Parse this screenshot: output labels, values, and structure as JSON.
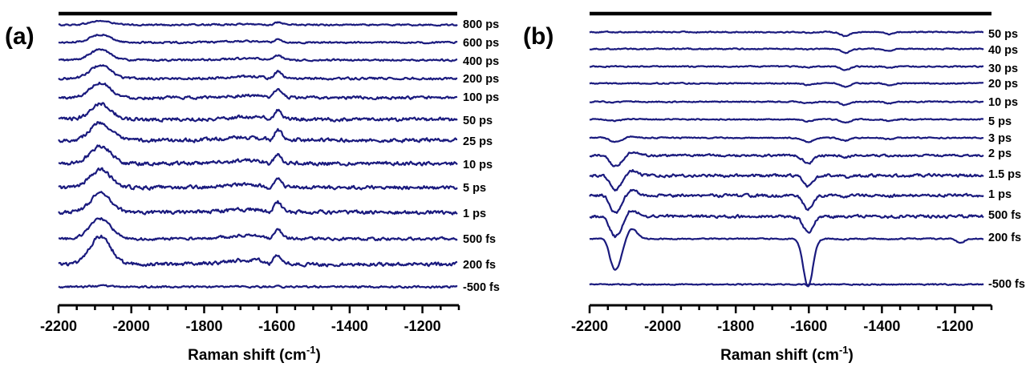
{
  "colors": {
    "trace": "#1a1a7e",
    "axis": "#000000",
    "background": "#ffffff"
  },
  "chart_data": [
    {
      "type": "line",
      "panel_label": "(a)",
      "xlabel": "Raman shift (cm",
      "xlabel_sup": "-1",
      "xlabel_close": ")",
      "ylabel": "",
      "xlim": [
        -2200,
        -1100
      ],
      "xticks": [
        -2200,
        -2000,
        -1800,
        -1600,
        -1400,
        -1200
      ],
      "tick_labels": [
        "-2200",
        "-2000",
        "-1800",
        "-1600",
        "-1400",
        "-1200"
      ],
      "features": [
        {
          "center": -2085,
          "width": 28,
          "kind": "positive"
        },
        {
          "center": -1600,
          "width": 12,
          "kind": "positive"
        }
      ],
      "series": [
        {
          "name": "800 ps",
          "peak_2085": 0.22,
          "peak_1600": 0.12,
          "noise": 0.08
        },
        {
          "name": "600 ps",
          "peak_2085": 0.45,
          "peak_1600": 0.15,
          "noise": 0.09
        },
        {
          "name": "400 ps",
          "peak_2085": 0.6,
          "peak_1600": 0.22,
          "noise": 0.1
        },
        {
          "name": "200 ps",
          "peak_2085": 0.75,
          "peak_1600": 0.35,
          "noise": 0.12
        },
        {
          "name": "100 ps",
          "peak_2085": 0.85,
          "peak_1600": 0.45,
          "noise": 0.15
        },
        {
          "name": "50 ps",
          "peak_2085": 0.9,
          "peak_1600": 0.45,
          "noise": 0.2
        },
        {
          "name": "25 ps",
          "peak_2085": 1.0,
          "peak_1600": 0.5,
          "noise": 0.2
        },
        {
          "name": "10 ps",
          "peak_2085": 1.0,
          "peak_1600": 0.5,
          "noise": 0.2
        },
        {
          "name": "5 ps",
          "peak_2085": 1.0,
          "peak_1600": 0.45,
          "noise": 0.2
        },
        {
          "name": "1 ps",
          "peak_2085": 1.05,
          "peak_1600": 0.5,
          "noise": 0.2
        },
        {
          "name": "500 fs",
          "peak_2085": 1.15,
          "peak_1600": 0.45,
          "noise": 0.15
        },
        {
          "name": "200 fs",
          "peak_2085": 1.6,
          "peak_1600": 0.4,
          "noise": 0.2
        },
        {
          "name": "-500 fs",
          "peak_2085": 0.05,
          "peak_1600": 0.0,
          "noise": 0.1
        }
      ]
    },
    {
      "type": "line",
      "panel_label": "(b)",
      "xlabel": "Raman shift (cm",
      "xlabel_sup": "-1",
      "xlabel_close": ")",
      "ylabel": "",
      "xlim": [
        -2200,
        -1100
      ],
      "xticks": [
        -2200,
        -2000,
        -1800,
        -1600,
        -1400,
        -1200
      ],
      "tick_labels": [
        "-2200",
        "-2000",
        "-1800",
        "-1600",
        "-1400",
        "-1200"
      ],
      "features": [
        {
          "center": -2130,
          "width": 20,
          "kind": "negative"
        },
        {
          "center": -2085,
          "width": 14,
          "kind": "positive"
        },
        {
          "center": -1600,
          "width": 14,
          "kind": "negative"
        },
        {
          "center": -1500,
          "width": 12,
          "kind": "negative"
        },
        {
          "center": -1380,
          "width": 10,
          "kind": "negative"
        },
        {
          "center": -1180,
          "width": 10,
          "kind": "negative"
        }
      ],
      "series": [
        {
          "name": "50 ps",
          "dip_2130": 0.0,
          "dip_1600": 0.05,
          "dip_1500": 0.3,
          "noise": 0.08
        },
        {
          "name": "40 ps",
          "dip_2130": 0.0,
          "dip_1600": 0.05,
          "dip_1500": 0.3,
          "noise": 0.08
        },
        {
          "name": "30 ps",
          "dip_2130": 0.0,
          "dip_1600": 0.05,
          "dip_1500": 0.25,
          "noise": 0.08
        },
        {
          "name": "20 ps",
          "dip_2130": 0.0,
          "dip_1600": 0.1,
          "dip_1500": 0.25,
          "noise": 0.08
        },
        {
          "name": "10 ps",
          "dip_2130": 0.05,
          "dip_1600": 0.1,
          "dip_1500": 0.25,
          "noise": 0.08
        },
        {
          "name": "5 ps",
          "dip_2130": 0.1,
          "dip_1600": 0.15,
          "dip_1500": 0.25,
          "noise": 0.08
        },
        {
          "name": "3 ps",
          "dip_2130": 0.3,
          "dip_1600": 0.3,
          "dip_1500": 0.2,
          "noise": 0.08
        },
        {
          "name": "2 ps",
          "dip_2130": 0.8,
          "dip_1600": 0.6,
          "dip_1500": 0.1,
          "noise": 0.15
        },
        {
          "name": "1.5 ps",
          "dip_2130": 1.1,
          "dip_1600": 0.8,
          "dip_1500": 0.1,
          "noise": 0.2
        },
        {
          "name": "1 ps",
          "dip_2130": 1.3,
          "dip_1600": 1.0,
          "dip_1500": 0.1,
          "noise": 0.2
        },
        {
          "name": "500 fs",
          "dip_2130": 1.5,
          "dip_1600": 1.2,
          "dip_1500": 0.05,
          "noise": 0.2
        },
        {
          "name": "200 fs",
          "dip_2130": 2.3,
          "dip_1600": 3.5,
          "dip_1500": 0.05,
          "noise": 0.08
        },
        {
          "name": "-500 fs",
          "dip_2130": 0.0,
          "dip_1600": 0.0,
          "dip_1500": 0.0,
          "noise": 0.08
        }
      ]
    }
  ]
}
